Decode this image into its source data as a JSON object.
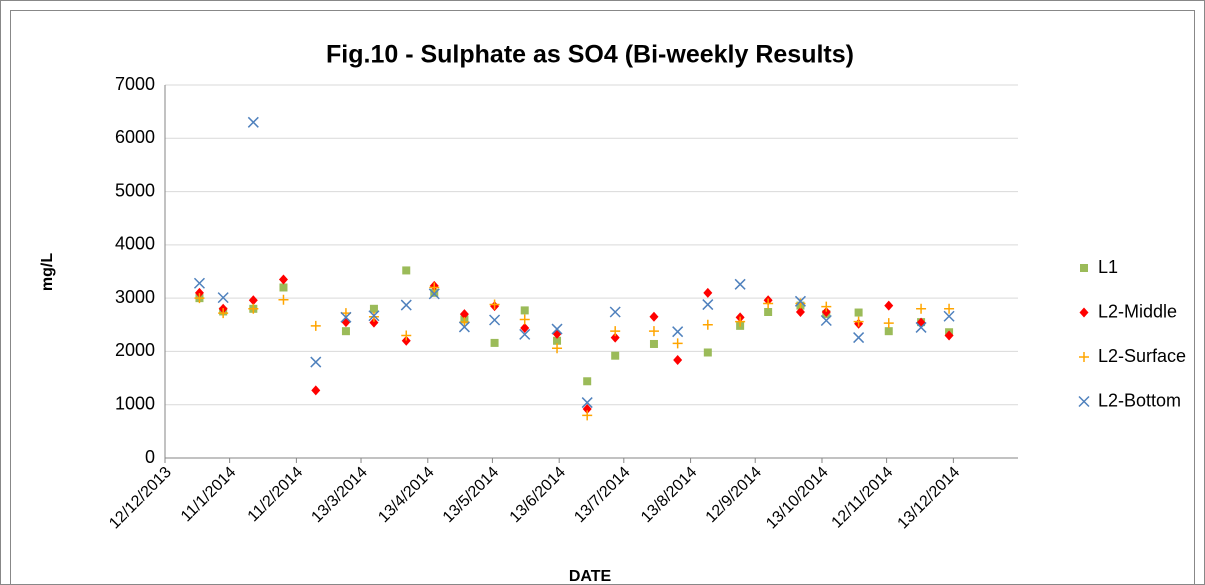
{
  "chart_data": {
    "type": "scatter",
    "title": "Fig.10 - Sulphate as SO4 (Bi-weekly Results)",
    "xlabel": "DATE",
    "ylabel": "mg/L",
    "x": [
      "2013-12-28",
      "2014-01-08",
      "2014-01-22",
      "2014-02-05",
      "2014-02-20",
      "2014-03-06",
      "2014-03-19",
      "2014-04-03",
      "2014-04-16",
      "2014-04-30",
      "2014-05-14",
      "2014-05-28",
      "2014-06-12",
      "2014-06-26",
      "2014-07-09",
      "2014-07-27",
      "2014-08-07",
      "2014-08-21",
      "2014-09-05",
      "2014-09-18",
      "2014-10-03",
      "2014-10-15",
      "2014-10-30",
      "2014-11-13",
      "2014-11-28",
      "2014-12-11"
    ],
    "series": [
      {
        "name": "L1",
        "color": "#9bbb59",
        "marker": "square",
        "values": [
          3000,
          2750,
          2800,
          3200,
          null,
          2380,
          2800,
          3520,
          3100,
          2600,
          2160,
          2770,
          2200,
          1440,
          1920,
          2140,
          null,
          1980,
          2480,
          2740,
          2860,
          2700,
          2730,
          2380,
          2550,
          2360
        ]
      },
      {
        "name": "L2-Middle",
        "color": "#ff0000",
        "marker": "diamond",
        "values": [
          3100,
          2800,
          2960,
          3350,
          1270,
          2550,
          2540,
          2200,
          3230,
          2700,
          2850,
          2440,
          2330,
          920,
          2260,
          2650,
          1840,
          3100,
          2640,
          2960,
          2740,
          2740,
          2520,
          2860,
          2540,
          2300
        ]
      },
      {
        "name": "L2-Surface",
        "color": "#ffa500",
        "marker": "plus",
        "values": [
          3000,
          2720,
          2800,
          2970,
          2480,
          2720,
          2650,
          2300,
          3200,
          2550,
          2880,
          2600,
          2060,
          800,
          2380,
          2380,
          2150,
          2500,
          2560,
          2900,
          2900,
          2840,
          2560,
          2530,
          2800,
          2800
        ]
      },
      {
        "name": "L2-Bottom",
        "color": "#4f81bd",
        "marker": "cross",
        "values": [
          3280,
          3010,
          6300,
          null,
          1800,
          2640,
          2670,
          2870,
          3080,
          2460,
          2590,
          2320,
          2420,
          1040,
          2740,
          null,
          2370,
          2880,
          3260,
          null,
          2940,
          2580,
          2260,
          null,
          2450,
          2660
        ]
      }
    ],
    "xlim": [
      "2013-12-12",
      "2015-01-12"
    ],
    "xticks": [
      {
        "value": "2013-12-12",
        "label": "12/12/2013"
      },
      {
        "value": "2014-01-11",
        "label": "11/1/2014"
      },
      {
        "value": "2014-02-11",
        "label": "11/2/2014"
      },
      {
        "value": "2014-03-13",
        "label": "13/3/2014"
      },
      {
        "value": "2014-04-13",
        "label": "13/4/2014"
      },
      {
        "value": "2014-05-13",
        "label": "13/5/2014"
      },
      {
        "value": "2014-06-13",
        "label": "13/6/2014"
      },
      {
        "value": "2014-07-13",
        "label": "13/7/2014"
      },
      {
        "value": "2014-08-13",
        "label": "13/8/2014"
      },
      {
        "value": "2014-09-12",
        "label": "12/9/2014"
      },
      {
        "value": "2014-10-13",
        "label": "13/10/2014"
      },
      {
        "value": "2014-11-12",
        "label": "12/11/2014"
      },
      {
        "value": "2014-12-13",
        "label": "13/12/2014"
      }
    ],
    "ylim": [
      0,
      7000
    ],
    "yticks": [
      0,
      1000,
      2000,
      3000,
      4000,
      5000,
      6000,
      7000
    ],
    "grid": true,
    "legend": "right"
  }
}
